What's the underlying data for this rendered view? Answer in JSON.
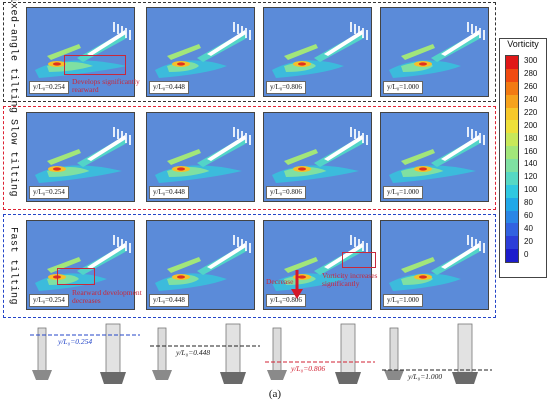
{
  "rows": [
    {
      "label": "Fixed-angle tilting",
      "color": "#333333"
    },
    {
      "label": "Slow tilting",
      "color": "#d22233"
    },
    {
      "label": "Fast tilting",
      "color": "#2345c8"
    }
  ],
  "positions": [
    "y/L₀=0.254",
    "y/L₀=0.448",
    "y/L₀=0.806",
    "y/L₀=1.000"
  ],
  "legend": {
    "title": "Vorticity",
    "ticks": [
      "300",
      "280",
      "260",
      "240",
      "220",
      "200",
      "180",
      "160",
      "140",
      "120",
      "100",
      "80",
      "60",
      "40",
      "20",
      "0"
    ],
    "colors": [
      "#e01818",
      "#f04a10",
      "#f27a12",
      "#f6a21c",
      "#f7c82a",
      "#eee03a",
      "#c8e85a",
      "#a2e67a",
      "#7fe0a2",
      "#56d8c4",
      "#30c8e0",
      "#20a8e8",
      "#2a86e6",
      "#3262e0",
      "#2c3ed8",
      "#1c1ccc"
    ]
  },
  "annotations": {
    "develops": "Develops significantly rearward",
    "rearward": "Rearward development decreases",
    "decrease": "Decrease",
    "increases": "Vorticity increases significantly"
  },
  "sketch_labels": [
    "y/L₀=0.254",
    "y/L₀=0.448",
    "y/L₀=0.806",
    "y/L₀=1.000"
  ],
  "caption": "(a)"
}
